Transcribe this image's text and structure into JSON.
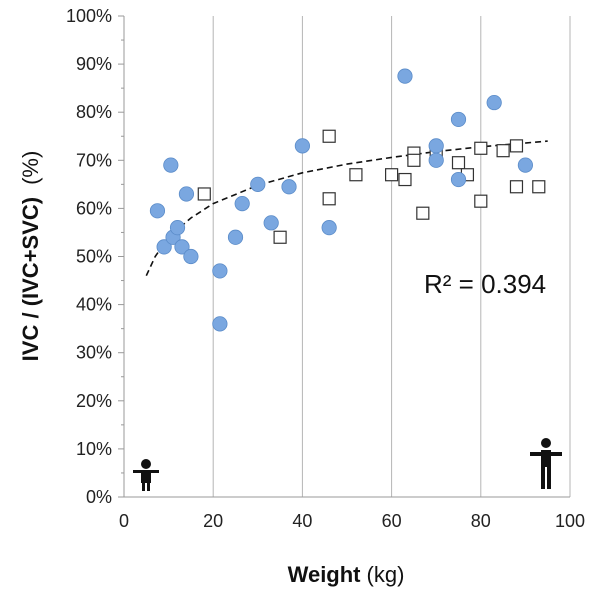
{
  "chart_data": {
    "type": "scatter",
    "xlabel_bold": "Weight",
    "xlabel_unit": "(kg)",
    "ylabel_main": "IVC / (IVC+SVC)",
    "ylabel_unit": "(%)",
    "xlim": [
      0,
      100
    ],
    "ylim": [
      0,
      100
    ],
    "x_ticks": [
      0,
      20,
      40,
      60,
      80,
      100
    ],
    "y_ticks": [
      0,
      10,
      20,
      30,
      40,
      50,
      60,
      70,
      80,
      90,
      100
    ],
    "y_tick_suffix": "%",
    "grid": "vertical",
    "annotation": "R² = 0.394",
    "series": [
      {
        "marker": "filled-circle",
        "color": "#7aa7e0",
        "points": [
          {
            "x": 7.5,
            "y": 59.5
          },
          {
            "x": 9,
            "y": 52
          },
          {
            "x": 10.5,
            "y": 69
          },
          {
            "x": 11,
            "y": 54
          },
          {
            "x": 12,
            "y": 56
          },
          {
            "x": 13,
            "y": 52
          },
          {
            "x": 14,
            "y": 63
          },
          {
            "x": 15,
            "y": 50
          },
          {
            "x": 21.5,
            "y": 47
          },
          {
            "x": 21.5,
            "y": 36
          },
          {
            "x": 25,
            "y": 54
          },
          {
            "x": 26.5,
            "y": 61
          },
          {
            "x": 30,
            "y": 65
          },
          {
            "x": 33,
            "y": 57
          },
          {
            "x": 37,
            "y": 64.5
          },
          {
            "x": 40,
            "y": 73
          },
          {
            "x": 46,
            "y": 56
          },
          {
            "x": 63,
            "y": 87.5
          },
          {
            "x": 70,
            "y": 73
          },
          {
            "x": 70,
            "y": 70
          },
          {
            "x": 75,
            "y": 78.5
          },
          {
            "x": 75,
            "y": 66
          },
          {
            "x": 83,
            "y": 82
          },
          {
            "x": 90,
            "y": 69
          }
        ]
      },
      {
        "marker": "open-square",
        "color": "#333333",
        "points": [
          {
            "x": 18,
            "y": 63
          },
          {
            "x": 35,
            "y": 54
          },
          {
            "x": 46,
            "y": 75
          },
          {
            "x": 46,
            "y": 62
          },
          {
            "x": 52,
            "y": 67
          },
          {
            "x": 60,
            "y": 67
          },
          {
            "x": 63,
            "y": 66
          },
          {
            "x": 65,
            "y": 71.5
          },
          {
            "x": 65,
            "y": 70
          },
          {
            "x": 67,
            "y": 59
          },
          {
            "x": 70,
            "y": 71
          },
          {
            "x": 75,
            "y": 69.5
          },
          {
            "x": 77,
            "y": 67
          },
          {
            "x": 80,
            "y": 72.5
          },
          {
            "x": 80,
            "y": 61.5
          },
          {
            "x": 85,
            "y": 72
          },
          {
            "x": 88,
            "y": 73
          },
          {
            "x": 88,
            "y": 64.5
          },
          {
            "x": 93,
            "y": 64.5
          }
        ]
      }
    ],
    "trendline": {
      "style": "dashed",
      "type": "logarithmic",
      "points": [
        {
          "x": 5,
          "y": 46
        },
        {
          "x": 7,
          "y": 50
        },
        {
          "x": 10,
          "y": 54
        },
        {
          "x": 15,
          "y": 58
        },
        {
          "x": 20,
          "y": 61
        },
        {
          "x": 30,
          "y": 64.8
        },
        {
          "x": 40,
          "y": 67.4
        },
        {
          "x": 50,
          "y": 69.2
        },
        {
          "x": 60,
          "y": 70.6
        },
        {
          "x": 70,
          "y": 71.8
        },
        {
          "x": 80,
          "y": 72.8
        },
        {
          "x": 95,
          "y": 74
        }
      ]
    },
    "icons": [
      {
        "name": "child-figure-icon",
        "x": 5
      },
      {
        "name": "adult-figure-icon",
        "x": 95
      }
    ]
  }
}
